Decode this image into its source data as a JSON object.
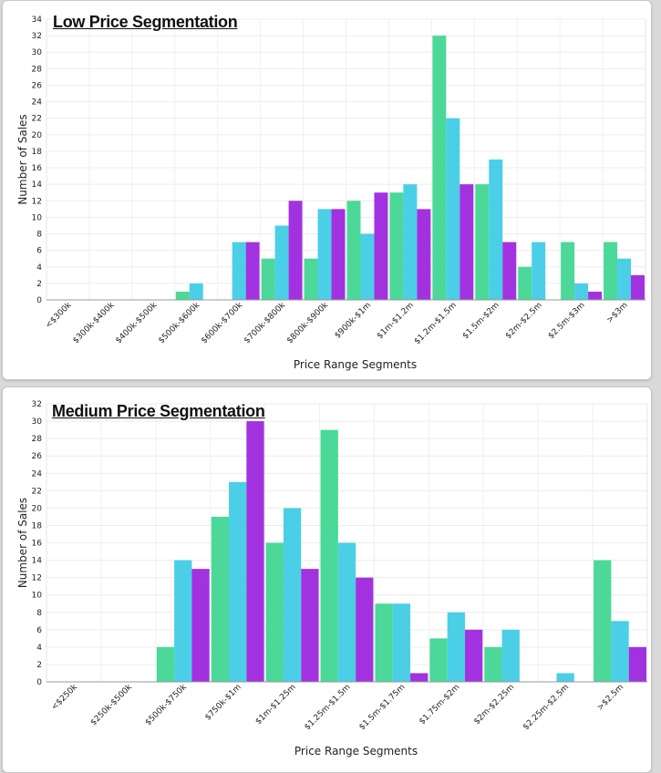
{
  "chart_data": [
    {
      "type": "bar",
      "title": "Low Price Segmentation",
      "xlabel": "Price Range Segments",
      "ylabel": "Number of Sales",
      "ylim": [
        0,
        34
      ],
      "yticks": [
        0,
        2,
        4,
        6,
        8,
        10,
        12,
        14,
        16,
        18,
        20,
        22,
        24,
        26,
        28,
        30,
        32,
        34
      ],
      "grid": true,
      "categories": [
        "<$300k",
        "$300k-$400k",
        "$400k-$500k",
        "$500k-$600k",
        "$600k-$700k",
        "$700k-$800k",
        "$800k-$900k",
        "$900k-$1m",
        "$1m-$1.2m",
        "$1.2m-$1.5m",
        "$1.5m-$2m",
        "$2m-$2.5m",
        "$2.5m-$3m",
        ">$3m"
      ],
      "series": [
        {
          "color": "#4bd898",
          "values": [
            0,
            0,
            0,
            1,
            0,
            5,
            5,
            12,
            13,
            32,
            14,
            4,
            7,
            7
          ]
        },
        {
          "color": "#4acfe6",
          "values": [
            0,
            0,
            0,
            2,
            7,
            9,
            11,
            8,
            14,
            22,
            17,
            7,
            2,
            5
          ]
        },
        {
          "color": "#a232e0",
          "values": [
            0,
            0,
            0,
            0,
            7,
            12,
            11,
            13,
            11,
            14,
            7,
            0,
            1,
            3
          ]
        }
      ]
    },
    {
      "type": "bar",
      "title": "Medium Price Segmentation",
      "xlabel": "Price Range Segments",
      "ylabel": "Number of Sales",
      "ylim": [
        0,
        32
      ],
      "yticks": [
        0,
        2,
        4,
        6,
        8,
        10,
        12,
        14,
        16,
        18,
        20,
        22,
        24,
        26,
        28,
        30,
        32
      ],
      "grid": true,
      "categories": [
        "<$250k",
        "$250k-$500k",
        "$500k-$750k",
        "$750k-$1m",
        "$1m-$1.25m",
        "$1.25m-$1.5m",
        "$1.5m-$1.75m",
        "$1.75m-$2m",
        "$2m-$2.25m",
        "$2.25m-$2.5m",
        ">$2.5m"
      ],
      "series": [
        {
          "color": "#4bd898",
          "values": [
            0,
            0,
            4,
            19,
            16,
            29,
            9,
            5,
            4,
            0,
            14
          ]
        },
        {
          "color": "#4acfe6",
          "values": [
            0,
            0,
            14,
            23,
            20,
            16,
            9,
            8,
            6,
            1,
            7
          ]
        },
        {
          "color": "#a232e0",
          "values": [
            0,
            0,
            13,
            30,
            13,
            12,
            1,
            6,
            0,
            0,
            4
          ]
        }
      ]
    }
  ]
}
